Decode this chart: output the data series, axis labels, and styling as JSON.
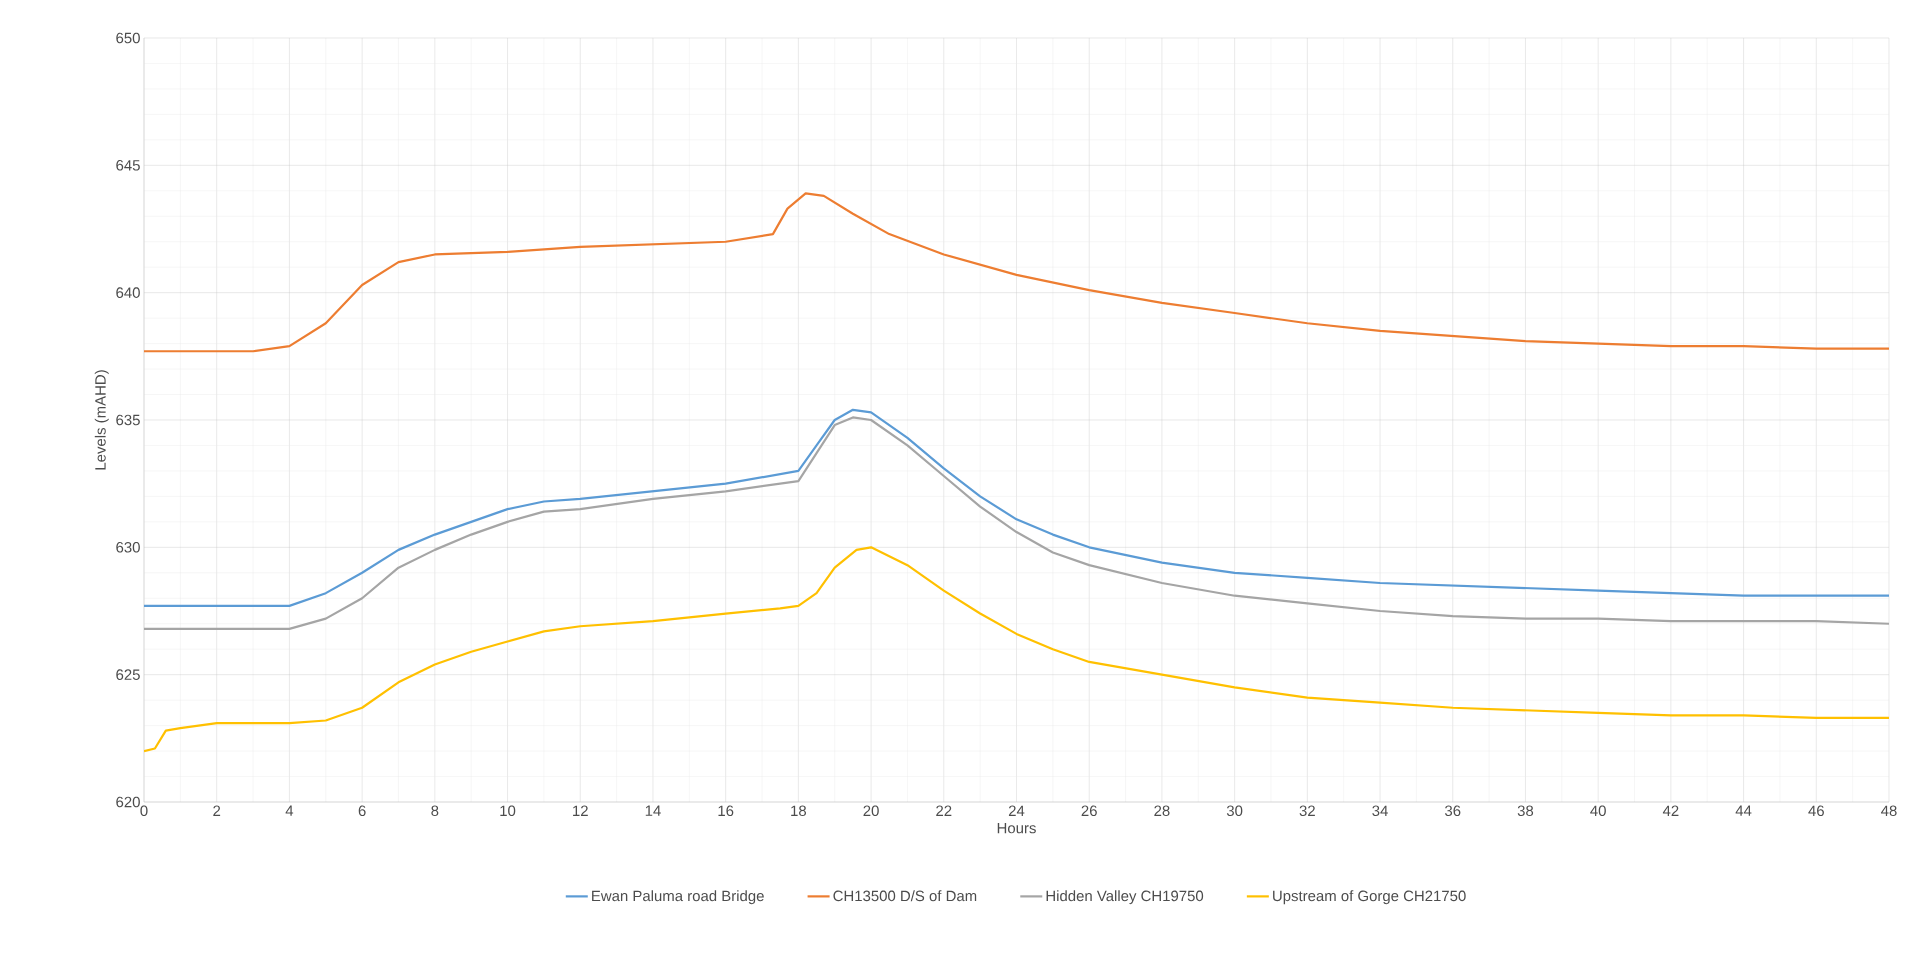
{
  "chart_data": {
    "type": "line",
    "xlabel": "Hours",
    "ylabel": "Levels (mAHD)",
    "xlim": [
      0,
      48
    ],
    "xticks": [
      0,
      2,
      4,
      6,
      8,
      10,
      12,
      14,
      16,
      18,
      20,
      22,
      24,
      26,
      28,
      30,
      32,
      34,
      36,
      38,
      40,
      42,
      44,
      46,
      48
    ],
    "ylim": [
      620,
      650
    ],
    "yticks": [
      620,
      625,
      630,
      635,
      640,
      645,
      650
    ],
    "grid": true,
    "legend": "bottom",
    "marker": "none",
    "line_style": "solid",
    "series": [
      {
        "name": "Ewan Paluma road Bridge",
        "color": "#5b9bd5",
        "x": [
          0,
          4,
          5,
          6,
          7,
          8,
          9,
          10,
          11,
          12,
          14,
          16,
          18,
          18.5,
          19,
          19.5,
          20,
          21,
          22,
          23,
          24,
          25,
          26,
          28,
          30,
          32,
          34,
          36,
          38,
          40,
          42,
          44,
          46,
          48
        ],
        "values": [
          627.7,
          627.7,
          628.2,
          629.0,
          629.9,
          630.5,
          631.0,
          631.5,
          631.8,
          631.9,
          632.2,
          632.5,
          633.0,
          634.0,
          635.0,
          635.4,
          635.3,
          634.3,
          633.1,
          632.0,
          631.1,
          630.5,
          630.0,
          629.4,
          629.0,
          628.8,
          628.6,
          628.5,
          628.4,
          628.3,
          628.2,
          628.1,
          628.1,
          628.1
        ]
      },
      {
        "name": "CH13500 D/S of Dam",
        "color": "#ed7d31",
        "x": [
          0,
          3,
          4,
          5,
          6,
          7,
          8,
          10,
          12,
          14,
          16,
          17.3,
          17.7,
          18.2,
          18.7,
          19.5,
          20.5,
          22,
          24,
          26,
          28,
          30,
          32,
          34,
          36,
          38,
          40,
          42,
          44,
          46,
          48
        ],
        "values": [
          637.7,
          637.7,
          637.9,
          638.8,
          640.3,
          641.2,
          641.5,
          641.6,
          641.8,
          641.9,
          642.0,
          642.3,
          643.3,
          643.9,
          643.8,
          643.1,
          642.3,
          641.5,
          640.7,
          640.1,
          639.6,
          639.2,
          638.8,
          638.5,
          638.3,
          638.1,
          638.0,
          637.9,
          637.9,
          637.8,
          637.8
        ]
      },
      {
        "name": "Hidden Valley CH19750",
        "color": "#a5a5a5",
        "x": [
          0,
          4,
          5,
          6,
          7,
          8,
          9,
          10,
          11,
          12,
          14,
          16,
          18,
          18.5,
          19,
          19.5,
          20,
          21,
          22,
          23,
          24,
          25,
          26,
          28,
          30,
          32,
          34,
          36,
          38,
          40,
          42,
          44,
          46,
          48
        ],
        "values": [
          626.8,
          626.8,
          627.2,
          628.0,
          629.2,
          629.9,
          630.5,
          631.0,
          631.4,
          631.5,
          631.9,
          632.2,
          632.6,
          633.7,
          634.8,
          635.1,
          635.0,
          634.0,
          632.8,
          631.6,
          630.6,
          629.8,
          629.3,
          628.6,
          628.1,
          627.8,
          627.5,
          627.3,
          627.2,
          627.2,
          627.1,
          627.1,
          627.1,
          627.0
        ]
      },
      {
        "name": "Upstream of Gorge CH21750",
        "color": "#ffc000",
        "x": [
          0,
          0.3,
          0.6,
          1,
          1.5,
          2,
          4,
          5,
          6,
          7,
          8,
          9,
          10,
          11,
          12,
          14,
          16,
          17.5,
          18,
          18.5,
          19,
          19.6,
          20,
          21,
          22,
          23,
          24,
          25,
          26,
          28,
          30,
          32,
          34,
          36,
          38,
          40,
          42,
          44,
          46,
          48
        ],
        "values": [
          622.0,
          622.1,
          622.8,
          622.9,
          623.0,
          623.1,
          623.1,
          623.2,
          623.7,
          624.7,
          625.4,
          625.9,
          626.3,
          626.7,
          626.9,
          627.1,
          627.4,
          627.6,
          627.7,
          628.2,
          629.2,
          629.9,
          630.0,
          629.3,
          628.3,
          627.4,
          626.6,
          626.0,
          625.5,
          625.0,
          624.5,
          624.1,
          623.9,
          623.7,
          623.6,
          623.5,
          623.4,
          623.4,
          623.3,
          623.3
        ]
      }
    ]
  }
}
